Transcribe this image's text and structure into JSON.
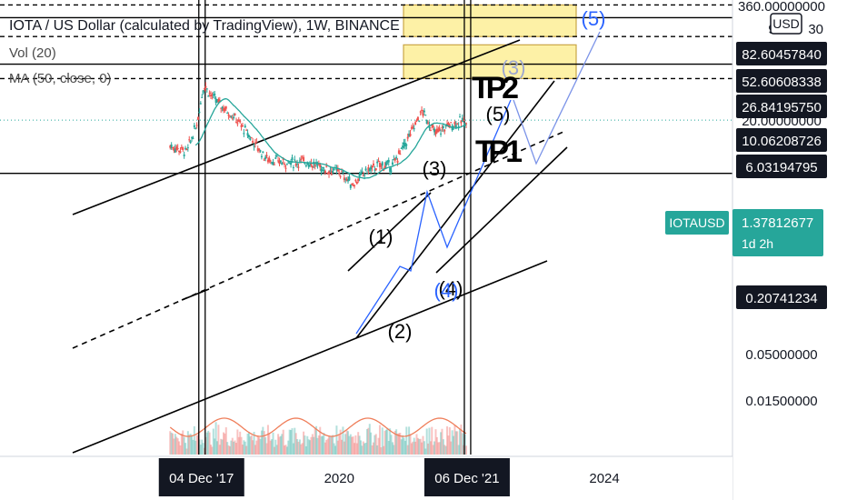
{
  "header": {
    "title": "IOTA / US Dollar (calculated by TradingView), 1W, BINANCE",
    "volume_indicator": "Vol (20)",
    "ma_indicator": "MA (50, close, 0)"
  },
  "chart_data": {
    "type": "candlestick",
    "symbol": "IOTAUSD",
    "exchange": "BINANCE",
    "timeframe": "1W",
    "y_scale": "log",
    "currency_badge": "USD",
    "price_scale_labels": [
      {
        "label": "360.00000000",
        "value": 360
      },
      {
        "label": "98.0",
        "suffix": "30",
        "value": 98.0,
        "partially_hidden": true
      },
      {
        "label": "82.60457840",
        "value": 82.6045784,
        "boxed": true
      },
      {
        "label": "52.60608338",
        "value": 52.60608338,
        "boxed": true
      },
      {
        "label": "26.84195750",
        "value": 26.8419575,
        "boxed": true
      },
      {
        "label": "20.00000000",
        "value": 20.0,
        "partially_hidden": true
      },
      {
        "label": "10.06208726",
        "value": 10.06208726,
        "boxed": true
      },
      {
        "label": "6.03194795",
        "value": 6.03194795,
        "boxed": true
      },
      {
        "label": "0.20741234",
        "value": 0.20741234,
        "boxed": true
      },
      {
        "label": "0.05000000",
        "value": 0.05
      },
      {
        "label": "0.01500000",
        "value": 0.015
      }
    ],
    "current_price": {
      "symbol_label": "IOTAUSD",
      "value": "1.37812677",
      "countdown": "1d 2h",
      "color": "#26a69a"
    },
    "time_labels": [
      {
        "label": "04 Dec '17",
        "date": "2017-12-04",
        "highlighted": true
      },
      {
        "label": "2020",
        "date": "2020-01-01",
        "highlighted": false
      },
      {
        "label": "06 Dec '21",
        "date": "2021-12-06",
        "highlighted": true
      },
      {
        "label": "2024",
        "date": "2024-01-01",
        "highlighted": false
      }
    ],
    "horizontal_levels": [
      {
        "value": 82.6045784,
        "style": "dashed"
      },
      {
        "value": 52.60608338,
        "style": "solid"
      },
      {
        "value": 26.8419575,
        "style": "dashed"
      },
      {
        "value": 10.06208726,
        "style": "solid"
      },
      {
        "value": 6.03194795,
        "style": "dashed"
      },
      {
        "value": 0.20741234,
        "style": "solid"
      }
    ],
    "target_zones": [
      {
        "label": "TP2",
        "from": 26.8419575,
        "to": 82.6045784,
        "color": "#fdf1a6"
      },
      {
        "label": "TP 1",
        "from": 6.03194795,
        "to": 20.0,
        "color": "#fdf1a6"
      }
    ],
    "wave_labels": [
      {
        "text": "(1)",
        "color": "#000000"
      },
      {
        "text": "(2)",
        "color": "#000000"
      },
      {
        "text": "(3)",
        "color": "#000000"
      },
      {
        "text": "(4)",
        "color": "#000000"
      },
      {
        "text": "(5)",
        "color": "#000000"
      },
      {
        "text": "(3)",
        "color": "#9da7d0"
      },
      {
        "text": "(4)",
        "color": "#2962ff"
      },
      {
        "text": "(5)",
        "color": "#2962ff"
      }
    ],
    "colors": {
      "up": "#26a69a",
      "down": "#ef5350",
      "ma": "#26a69a",
      "volume_ma": "#ef7e5a",
      "wave": "#2962ff",
      "zone": "#fdf1a6"
    }
  }
}
